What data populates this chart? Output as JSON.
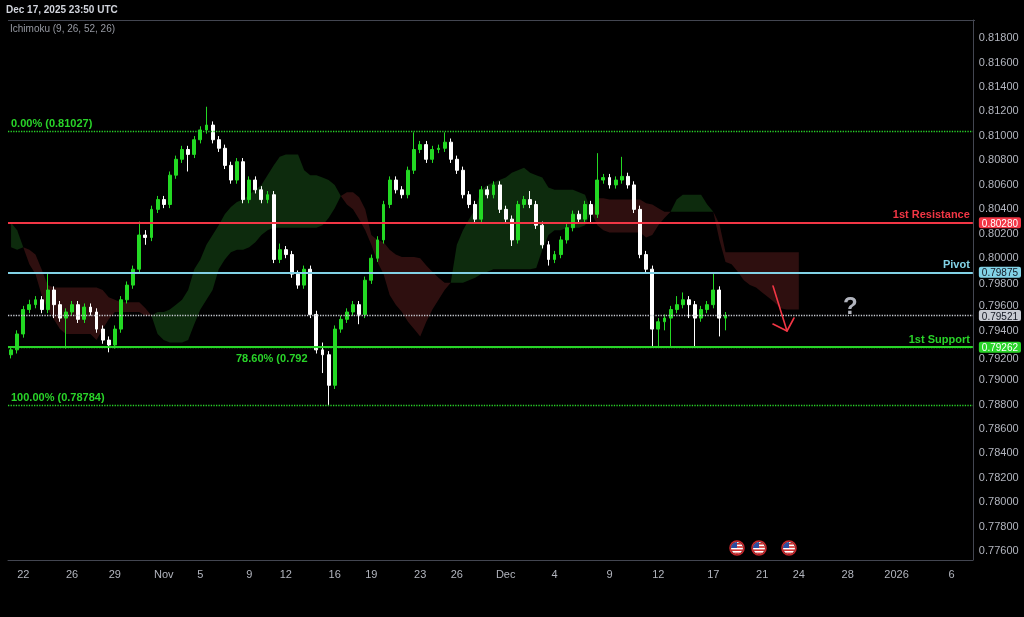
{
  "chart_data": {
    "type": "candlestick",
    "title": "Dec 17, 2025 23:50 UTC",
    "subtitle": "Ichimoku (9, 26, 52, 26)",
    "categories": [
      null,
      null,
      "22",
      null,
      null,
      null,
      null,
      null,
      null,
      null,
      "26",
      null,
      null,
      null,
      null,
      null,
      null,
      "29",
      null,
      null,
      null,
      null,
      null,
      null,
      null,
      "Nov",
      null,
      null,
      null,
      null,
      null,
      "5",
      null,
      null,
      null,
      null,
      null,
      null,
      null,
      "9",
      null,
      null,
      null,
      null,
      null,
      "12",
      null,
      null,
      null,
      null,
      null,
      null,
      null,
      "16",
      null,
      null,
      null,
      null,
      null,
      "19",
      null,
      null,
      null,
      null,
      null,
      null,
      null,
      "23",
      null,
      null,
      null,
      null,
      null,
      "26",
      null,
      null,
      null,
      null,
      null,
      null,
      null,
      "Dec",
      null,
      null,
      null,
      null,
      null,
      null,
      null,
      "4",
      null,
      null,
      null,
      null,
      null,
      null,
      null,
      null,
      "9",
      null,
      null,
      null,
      null,
      null,
      null,
      null,
      "12",
      null,
      null,
      null,
      null,
      null,
      null,
      null,
      null,
      "17",
      null,
      null,
      null,
      null,
      null,
      null,
      null,
      "21",
      null,
      null,
      null,
      null,
      null,
      "24",
      null,
      null,
      null,
      null,
      null,
      null,
      null,
      "28",
      null,
      null,
      null,
      null,
      null,
      null,
      null,
      "2026",
      null,
      null,
      null,
      null,
      null,
      null,
      null,
      null,
      "6",
      null,
      null,
      null
    ],
    "series": [
      {
        "ohlc": [
          [
            0.792,
            0.7927,
            0.7917,
            0.7924
          ],
          [
            0.7924,
            0.794,
            0.7921,
            0.7937
          ],
          [
            0.7937,
            0.796,
            0.7934,
            0.7957
          ],
          [
            0.7957,
            0.7965,
            0.7954,
            0.7961
          ],
          [
            0.7961,
            0.7968,
            0.7958,
            0.7965
          ],
          [
            0.7965,
            0.7968,
            0.7954,
            0.7957
          ],
          [
            0.7957,
            0.7987,
            0.7954,
            0.7973
          ],
          [
            0.7973,
            0.7976,
            0.795,
            0.7961
          ],
          [
            0.7961,
            0.7964,
            0.7947,
            0.795
          ],
          [
            0.795,
            0.7958,
            0.7925,
            0.7955
          ],
          [
            0.7955,
            0.7964,
            0.7952,
            0.7961
          ],
          [
            0.7961,
            0.7964,
            0.7946,
            0.7949
          ],
          [
            0.7949,
            0.7962,
            0.7946,
            0.7959
          ],
          [
            0.7959,
            0.7962,
            0.7952,
            0.7955
          ],
          [
            0.7955,
            0.7958,
            0.7938,
            0.7941
          ],
          [
            0.7941,
            0.7944,
            0.7929,
            0.7932
          ],
          [
            0.7932,
            0.7935,
            0.7922,
            0.7928
          ],
          [
            0.7928,
            0.7944,
            0.7925,
            0.7941
          ],
          [
            0.7941,
            0.7968,
            0.7938,
            0.7965
          ],
          [
            0.7965,
            0.798,
            0.7962,
            0.7977
          ],
          [
            0.7977,
            0.7993,
            0.7974,
            0.799
          ],
          [
            0.799,
            0.8029,
            0.7987,
            0.8018
          ],
          [
            0.8018,
            0.8022,
            0.801,
            0.8016
          ],
          [
            0.8016,
            0.8042,
            0.8013,
            0.8039
          ],
          [
            0.8039,
            0.805,
            0.8036,
            0.8047
          ],
          [
            0.8047,
            0.805,
            0.804,
            0.8043
          ],
          [
            0.8043,
            0.807,
            0.804,
            0.8067
          ],
          [
            0.8067,
            0.8083,
            0.8064,
            0.808
          ],
          [
            0.808,
            0.8091,
            0.8077,
            0.8088
          ],
          [
            0.8088,
            0.8091,
            0.807,
            0.8084
          ],
          [
            0.8084,
            0.8099,
            0.8081,
            0.8096
          ],
          [
            0.8096,
            0.8107,
            0.8093,
            0.8104
          ],
          [
            0.8104,
            0.8123,
            0.8101,
            0.8108
          ],
          [
            0.8108,
            0.8111,
            0.8093,
            0.8096
          ],
          [
            0.8096,
            0.8099,
            0.8086,
            0.8089
          ],
          [
            0.8089,
            0.8092,
            0.8072,
            0.8075
          ],
          [
            0.8075,
            0.8078,
            0.806,
            0.8063
          ],
          [
            0.8063,
            0.8081,
            0.806,
            0.8078
          ],
          [
            0.8078,
            0.8081,
            0.8044,
            0.8047
          ],
          [
            0.8047,
            0.8066,
            0.8044,
            0.8063
          ],
          [
            0.8063,
            0.8066,
            0.8052,
            0.8055
          ],
          [
            0.8055,
            0.8058,
            0.8044,
            0.8047
          ],
          [
            0.8047,
            0.8054,
            0.8044,
            0.8051
          ],
          [
            0.8051,
            0.8054,
            0.7995,
            0.7998
          ],
          [
            0.7998,
            0.8011,
            0.7995,
            0.8006
          ],
          [
            0.8006,
            0.8009,
            0.7999,
            0.8002
          ],
          [
            0.8002,
            0.8005,
            0.7983,
            0.7986
          ],
          [
            0.7986,
            0.7989,
            0.7974,
            0.7977
          ],
          [
            0.7977,
            0.7993,
            0.7974,
            0.799
          ],
          [
            0.799,
            0.7993,
            0.795,
            0.7953
          ],
          [
            0.7953,
            0.7956,
            0.7921,
            0.7924
          ],
          [
            0.7924,
            0.793,
            0.7905,
            0.792
          ],
          [
            0.792,
            0.7923,
            0.7878,
            0.7895
          ],
          [
            0.7895,
            0.7944,
            0.7892,
            0.7941
          ],
          [
            0.7941,
            0.7952,
            0.7938,
            0.7949
          ],
          [
            0.7949,
            0.7958,
            0.7946,
            0.7955
          ],
          [
            0.7955,
            0.7964,
            0.7952,
            0.7961
          ],
          [
            0.7961,
            0.7964,
            0.7945,
            0.7953
          ],
          [
            0.7953,
            0.7984,
            0.795,
            0.7981
          ],
          [
            0.7981,
            0.8002,
            0.7978,
            0.7999
          ],
          [
            0.7999,
            0.8017,
            0.7996,
            0.8014
          ],
          [
            0.8014,
            0.8046,
            0.8011,
            0.8043
          ],
          [
            0.8043,
            0.8066,
            0.804,
            0.8063
          ],
          [
            0.8063,
            0.8066,
            0.8052,
            0.8055
          ],
          [
            0.8055,
            0.8058,
            0.8048,
            0.8051
          ],
          [
            0.8051,
            0.8074,
            0.8048,
            0.8071
          ],
          [
            0.8071,
            0.8102,
            0.8068,
            0.8088
          ],
          [
            0.8088,
            0.8095,
            0.8085,
            0.8092
          ],
          [
            0.8092,
            0.8095,
            0.8077,
            0.808
          ],
          [
            0.808,
            0.8091,
            0.8077,
            0.8088
          ],
          [
            0.8088,
            0.8092,
            0.8085,
            0.8089
          ],
          [
            0.8089,
            0.8102,
            0.8086,
            0.8094
          ],
          [
            0.8094,
            0.8097,
            0.8077,
            0.808
          ],
          [
            0.808,
            0.8083,
            0.8068,
            0.8071
          ],
          [
            0.8071,
            0.8074,
            0.8048,
            0.8051
          ],
          [
            0.8051,
            0.8054,
            0.804,
            0.8043
          ],
          [
            0.8043,
            0.8046,
            0.8028,
            0.8031
          ],
          [
            0.8031,
            0.8058,
            0.8028,
            0.8055
          ],
          [
            0.8055,
            0.8058,
            0.8048,
            0.8051
          ],
          [
            0.8051,
            0.8062,
            0.8048,
            0.8059
          ],
          [
            0.8059,
            0.8062,
            0.8036,
            0.8039
          ],
          [
            0.8039,
            0.8042,
            0.8028,
            0.8031
          ],
          [
            0.8031,
            0.8034,
            0.8009,
            0.8014
          ],
          [
            0.8014,
            0.8046,
            0.8011,
            0.8043
          ],
          [
            0.8043,
            0.805,
            0.804,
            0.8047
          ],
          [
            0.8047,
            0.8054,
            0.804,
            0.8043
          ],
          [
            0.8043,
            0.8046,
            0.8023,
            0.8026
          ],
          [
            0.8026,
            0.8029,
            0.8007,
            0.801
          ],
          [
            0.801,
            0.8013,
            0.7993,
            0.7998
          ],
          [
            0.7998,
            0.8005,
            0.7995,
            0.8002
          ],
          [
            0.8002,
            0.8017,
            0.7999,
            0.8014
          ],
          [
            0.8014,
            0.8027,
            0.8011,
            0.8024
          ],
          [
            0.8024,
            0.8038,
            0.8021,
            0.8035
          ],
          [
            0.8035,
            0.8038,
            0.8028,
            0.8031
          ],
          [
            0.8031,
            0.8046,
            0.8028,
            0.8043
          ],
          [
            0.8043,
            0.8046,
            0.8028,
            0.8035
          ],
          [
            0.8035,
            0.8085,
            0.8032,
            0.8063
          ],
          [
            0.8063,
            0.8068,
            0.806,
            0.8065
          ],
          [
            0.8065,
            0.8068,
            0.8056,
            0.8059
          ],
          [
            0.8059,
            0.8066,
            0.8056,
            0.8063
          ],
          [
            0.8063,
            0.8082,
            0.806,
            0.8066
          ],
          [
            0.8066,
            0.8069,
            0.8056,
            0.8059
          ],
          [
            0.8059,
            0.8062,
            0.8036,
            0.8039
          ],
          [
            0.8039,
            0.8042,
            0.7999,
            0.8002
          ],
          [
            0.8002,
            0.8005,
            0.7987,
            0.799
          ],
          [
            0.799,
            0.7993,
            0.7926,
            0.7941
          ],
          [
            0.7941,
            0.795,
            0.7926,
            0.7947
          ],
          [
            0.7947,
            0.7953,
            0.794,
            0.795
          ],
          [
            0.795,
            0.796,
            0.7927,
            0.7957
          ],
          [
            0.7957,
            0.7968,
            0.7954,
            0.7961
          ],
          [
            0.7961,
            0.7971,
            0.7958,
            0.7965
          ],
          [
            0.7965,
            0.7968,
            0.795,
            0.7961
          ],
          [
            0.7961,
            0.7964,
            0.7927,
            0.795
          ],
          [
            0.795,
            0.796,
            0.7947,
            0.7957
          ],
          [
            0.7957,
            0.7964,
            0.7954,
            0.7961
          ],
          [
            0.7961,
            0.7987,
            0.7958,
            0.7973
          ],
          [
            0.7973,
            0.7976,
            0.7935,
            0.795
          ],
          [
            0.795,
            0.7955,
            0.794,
            0.7952
          ],
          null,
          null,
          null,
          null,
          null,
          null,
          null,
          null,
          null,
          null,
          null,
          null,
          null,
          null,
          null,
          null,
          null,
          null,
          null,
          null,
          null,
          null,
          null,
          null,
          null,
          null,
          null,
          null,
          null,
          null,
          null,
          null,
          null,
          null,
          null,
          null,
          null,
          null,
          null,
          null
        ],
        "colors": [
          "#23d923",
          "#23d923",
          "#23d923",
          "#23d923",
          "#23d923",
          "#ffffff",
          "#23d923",
          "#ffffff",
          "#ffffff",
          "#23d923",
          "#23d923",
          "#ffffff",
          "#23d923",
          "#ffffff",
          "#ffffff",
          "#ffffff",
          "#ffffff",
          "#23d923",
          "#23d923",
          "#23d923",
          "#23d923",
          "#23d923",
          "#ffffff",
          "#23d923",
          "#23d923",
          "#ffffff",
          "#23d923",
          "#23d923",
          "#23d923",
          "#ffffff",
          "#23d923",
          "#23d923",
          "#23d923",
          "#ffffff",
          "#ffffff",
          "#ffffff",
          "#ffffff",
          "#23d923",
          "#ffffff",
          "#23d923",
          "#ffffff",
          "#ffffff",
          "#23d923",
          "#ffffff",
          "#23d923",
          "#ffffff",
          "#ffffff",
          "#ffffff",
          "#23d923",
          "#ffffff",
          "#ffffff",
          "#ffffff",
          "#ffffff",
          "#23d923",
          "#23d923",
          "#23d923",
          "#23d923",
          "#ffffff",
          "#23d923",
          "#23d923",
          "#23d923",
          "#23d923",
          "#23d923",
          "#ffffff",
          "#ffffff",
          "#23d923",
          "#23d923",
          "#23d923",
          "#ffffff",
          "#23d923",
          "#23d923",
          "#23d923",
          "#ffffff",
          "#ffffff",
          "#ffffff",
          "#ffffff",
          "#ffffff",
          "#23d923",
          "#ffffff",
          "#23d923",
          "#ffffff",
          "#ffffff",
          "#ffffff",
          "#23d923",
          "#23d923",
          "#ffffff",
          "#ffffff",
          "#ffffff",
          "#ffffff",
          "#23d923",
          "#23d923",
          "#23d923",
          "#23d923",
          "#ffffff",
          "#23d923",
          "#ffffff",
          "#23d923",
          "#23d923",
          "#ffffff",
          "#23d923",
          "#23d923",
          "#ffffff",
          "#ffffff",
          "#ffffff",
          "#ffffff",
          "#ffffff",
          "#23d923",
          "#23d923",
          "#23d923",
          "#23d923",
          "#23d923",
          "#ffffff",
          "#ffffff",
          "#23d923",
          "#23d923",
          "#23d923",
          "#ffffff",
          "#23d923",
          null,
          null,
          null,
          null,
          null,
          null,
          null,
          null,
          null,
          null,
          null,
          null,
          null,
          null,
          null,
          null,
          null,
          null,
          null,
          null,
          null,
          null,
          null,
          null,
          null,
          null,
          null,
          null,
          null,
          null,
          null,
          null,
          null,
          null,
          null,
          null,
          null,
          null,
          null,
          null
        ]
      },
      {
        "type": "area",
        "color": "#0d2b0d",
        "values": [
          null,
          null,
          null,
          null,
          null,
          null,
          null,
          null,
          null,
          null,
          null,
          null,
          null,
          null,
          null,
          null,
          null,
          null,
          null,
          null,
          null,
          null,
          null,
          null,
          null,
          null,
          null,
          null,
          null,
          null,
          null,
          null,
          null,
          null,
          null,
          null,
          null,
          null,
          null,
          null,
          null,
          null,
          null,
          null,
          null,
          null,
          null,
          null,
          null,
          null,
          null,
          null,
          null,
          null,
          null,
          null,
          null,
          null,
          null,
          null,
          null,
          null,
          null,
          null,
          null,
          null,
          null,
          null,
          null,
          null,
          null,
          null,
          null,
          null,
          null,
          null,
          null,
          null,
          null,
          null,
          null,
          null,
          null,
          null,
          null,
          null,
          null,
          null,
          null,
          null,
          null,
          null,
          null,
          null,
          null,
          null,
          null,
          null,
          null,
          null,
          null,
          null,
          null,
          null,
          null,
          null,
          null,
          null,
          null,
          null,
          null,
          null,
          null,
          null,
          null,
          null,
          null,
          null,
          null,
          null,
          null,
          null,
          null,
          null,
          null,
          null,
          null,
          null,
          null,
          null,
          null,
          null,
          null,
          null,
          null,
          null,
          null,
          null,
          null,
          null,
          null,
          null,
          null,
          null,
          null,
          null,
          null,
          null,
          null,
          null,
          null,
          null,
          null,
          null,
          null,
          null,
          null,
          null
        ],
        "lower": [
          0.8008,
          0.8006,
          0.8008,
          null,
          null,
          null,
          null,
          null,
          null,
          null,
          null,
          null,
          null,
          null,
          null,
          null,
          null,
          null,
          null,
          null,
          null,
          null,
          null,
          0.7952,
          0.7937,
          0.7932,
          0.793,
          0.793,
          0.793,
          0.7932,
          0.7945,
          0.7957,
          0.7965,
          0.7973,
          0.799,
          0.7998,
          0.8004,
          0.8006,
          0.8006,
          0.8008,
          0.8012,
          0.8018,
          0.8022,
          0.8024,
          0.8024,
          0.8024,
          0.8024,
          0.8024,
          0.8024,
          0.8024,
          0.8024,
          0.8026,
          0.8032,
          0.804,
          0.805,
          null,
          null,
          null,
          null,
          null,
          null,
          null,
          null,
          null,
          null,
          null,
          null,
          null,
          null,
          null,
          null,
          null,
          0.7979,
          0.7979,
          0.7979,
          0.7981,
          0.7983,
          0.7986,
          0.7988,
          0.799,
          0.799,
          0.799,
          0.799,
          0.799,
          0.799,
          0.799,
          0.7991,
          0.8006,
          0.8018,
          0.8022,
          0.8022,
          0.8024,
          0.8024,
          0.8024,
          0.8026,
          0.8037,
          null,
          null,
          null,
          null,
          null,
          null,
          null,
          null,
          null,
          null,
          null,
          null,
          0.8037,
          0.8037,
          0.8037,
          0.8037,
          0.8037,
          0.8037,
          0.8037,
          0.8037,
          null,
          null,
          null,
          null,
          null,
          null,
          null,
          null,
          null,
          null,
          null,
          null,
          null,
          null,
          null,
          null,
          null,
          null,
          null,
          null,
          null,
          null,
          null,
          null,
          null,
          null,
          null,
          null,
          null,
          null,
          null,
          null,
          null,
          null,
          null,
          null,
          null,
          null,
          null,
          null,
          null,
          null
        ],
        "upper": [
          0.8028,
          0.8022,
          0.8008,
          null,
          null,
          null,
          null,
          null,
          null,
          null,
          null,
          null,
          null,
          null,
          null,
          null,
          null,
          null,
          null,
          null,
          null,
          null,
          null,
          0.7952,
          0.7955,
          0.7955,
          0.7957,
          0.7961,
          0.7965,
          0.7973,
          0.799,
          0.7998,
          0.801,
          0.8018,
          0.8026,
          0.8035,
          0.8041,
          0.8045,
          0.8047,
          0.8051,
          0.8055,
          0.8059,
          0.8067,
          0.8075,
          0.8082,
          0.8084,
          0.8084,
          0.8084,
          0.8071,
          0.8067,
          0.8067,
          0.8065,
          0.8063,
          0.8059,
          0.805,
          null,
          null,
          null,
          null,
          null,
          null,
          null,
          null,
          null,
          null,
          null,
          null,
          null,
          null,
          null,
          null,
          null,
          0.7979,
          0.801,
          0.8022,
          0.8031,
          0.8039,
          0.8055,
          0.8059,
          0.8061,
          0.8063,
          0.8065,
          0.8069,
          0.8071,
          0.8073,
          0.8069,
          0.8067,
          0.8065,
          0.8057,
          0.8055,
          0.8055,
          0.8055,
          0.8055,
          0.8053,
          0.8051,
          0.8037,
          null,
          null,
          null,
          null,
          null,
          null,
          null,
          null,
          null,
          null,
          null,
          null,
          0.8037,
          0.8047,
          0.8051,
          0.8051,
          0.8051,
          0.8051,
          0.8043,
          0.8037,
          null,
          null,
          null,
          null,
          null,
          null,
          null,
          null,
          null,
          null,
          null,
          null,
          null,
          null,
          null,
          null,
          null,
          null,
          null,
          null,
          null,
          null,
          null,
          null,
          null,
          null,
          null,
          null,
          null,
          null,
          null,
          null,
          null,
          null,
          null,
          null,
          null,
          null,
          null,
          null,
          null,
          null
        ]
      },
      {
        "type": "area",
        "color": "#2e0f0f",
        "values": [
          null,
          null,
          null,
          null,
          null,
          null,
          null,
          null,
          null,
          null,
          null,
          null,
          null,
          null,
          null,
          null,
          null,
          null,
          null,
          null,
          null,
          null,
          null,
          null,
          null,
          null,
          null,
          null,
          null,
          null,
          null,
          null,
          null,
          null,
          null,
          null,
          null,
          null,
          null,
          null,
          null,
          null,
          null,
          null,
          null,
          null,
          null,
          null,
          null,
          null,
          null,
          null,
          null,
          null,
          null,
          null,
          null,
          null,
          null,
          null,
          null,
          null,
          null,
          null,
          null,
          null,
          null,
          null,
          null,
          null,
          null,
          null,
          null,
          null,
          null,
          null,
          null,
          null,
          null,
          null,
          null,
          null,
          null,
          null,
          null,
          null,
          null,
          null,
          null,
          null,
          null,
          null,
          null,
          null,
          null,
          null,
          null,
          null,
          null,
          null,
          null,
          null,
          null,
          null,
          null,
          null,
          null,
          null,
          null,
          null,
          null,
          null,
          null,
          null,
          null,
          null,
          null,
          null,
          null,
          null,
          null,
          null,
          null,
          null,
          null,
          null,
          null,
          null,
          null,
          null,
          null,
          null,
          null,
          null,
          null,
          null,
          null,
          null,
          null,
          null,
          null,
          null,
          null,
          null,
          null,
          null,
          null,
          null,
          null,
          null,
          null,
          null,
          null,
          null,
          null,
          null,
          null,
          null
        ],
        "lower": [
          null,
          null,
          0.8008,
          0.7994,
          0.7986,
          0.7969,
          0.7957,
          0.7949,
          0.7941,
          0.7937,
          0.7937,
          0.7937,
          0.7937,
          0.7937,
          0.7932,
          0.7941,
          0.7949,
          0.7955,
          0.7955,
          0.7955,
          0.7955,
          0.7955,
          0.7952,
          0.7952,
          null,
          null,
          null,
          null,
          null,
          null,
          null,
          null,
          null,
          null,
          null,
          null,
          null,
          null,
          null,
          null,
          null,
          null,
          null,
          null,
          null,
          null,
          null,
          null,
          null,
          null,
          null,
          null,
          null,
          null,
          0.805,
          0.8043,
          0.8039,
          0.8031,
          0.8022,
          0.801,
          0.7996,
          0.7986,
          0.7969,
          0.7961,
          0.7955,
          0.7947,
          0.7941,
          0.7935,
          0.7947,
          0.7957,
          0.7965,
          0.7973,
          0.7979,
          null,
          null,
          null,
          null,
          null,
          null,
          null,
          null,
          null,
          null,
          null,
          null,
          null,
          null,
          null,
          null,
          null,
          null,
          null,
          null,
          null,
          null,
          0.8037,
          0.8026,
          0.8022,
          0.802,
          0.802,
          0.802,
          0.802,
          0.802,
          0.802,
          0.8016,
          0.8018,
          0.8026,
          0.8032,
          0.8037,
          null,
          null,
          null,
          null,
          null,
          null,
          0.8037,
          0.8014,
          0.7996,
          0.7994,
          0.7988,
          0.7981,
          0.7977,
          0.7975,
          0.7971,
          0.7967,
          0.7963,
          0.7958,
          0.7957,
          0.7957,
          0.7957,
          null,
          null,
          null,
          null,
          null,
          null,
          null,
          null,
          null,
          null,
          null,
          null,
          null,
          null,
          null,
          null,
          null,
          null,
          null,
          null,
          null,
          null,
          null,
          null,
          null,
          null,
          null,
          null
        ],
        "upper": [
          null,
          null,
          0.8008,
          0.8006,
          0.8002,
          0.799,
          0.7977,
          0.7975,
          0.7975,
          0.7975,
          0.7975,
          0.7975,
          0.7975,
          0.7975,
          0.7975,
          0.7973,
          0.7967,
          0.7965,
          0.7963,
          0.7963,
          0.7963,
          0.7963,
          0.7958,
          0.7952,
          null,
          null,
          null,
          null,
          null,
          null,
          null,
          null,
          null,
          null,
          null,
          null,
          null,
          null,
          null,
          null,
          null,
          null,
          null,
          null,
          null,
          null,
          null,
          null,
          null,
          null,
          null,
          null,
          null,
          null,
          0.805,
          0.8053,
          0.8053,
          0.8049,
          0.8039,
          0.8018,
          0.8014,
          0.8012,
          0.8006,
          0.8002,
          0.8,
          0.8,
          0.8,
          0.7999,
          0.7993,
          0.7988,
          0.7983,
          0.7979,
          0.7979,
          null,
          null,
          null,
          null,
          null,
          null,
          null,
          null,
          null,
          null,
          null,
          null,
          null,
          null,
          null,
          null,
          null,
          null,
          null,
          null,
          null,
          null,
          0.8037,
          0.8048,
          0.8048,
          0.8047,
          0.8047,
          0.8047,
          0.8047,
          0.8047,
          0.8047,
          0.8044,
          0.8043,
          0.804,
          0.8037,
          0.8037,
          null,
          null,
          null,
          null,
          null,
          null,
          0.8037,
          0.8027,
          0.8004,
          0.8004,
          0.8004,
          0.8004,
          0.8004,
          0.8004,
          0.8004,
          0.8004,
          0.8004,
          0.8004,
          0.8004,
          0.8004,
          0.8004,
          null,
          null,
          null,
          null,
          null,
          null,
          null,
          null,
          null,
          null,
          null,
          null,
          null,
          null,
          null,
          null,
          null,
          null,
          null,
          null,
          null,
          null,
          null,
          null,
          null,
          null,
          null,
          null
        ]
      }
    ],
    "ylim": [
      0.7752,
      0.8194
    ],
    "yticks": [
      {
        "value": 0.776,
        "label": "0.77600"
      },
      {
        "value": 0.778,
        "label": "0.77800"
      },
      {
        "value": 0.78,
        "label": "0.78000"
      },
      {
        "value": 0.782,
        "label": "0.78200"
      },
      {
        "value": 0.784,
        "label": "0.78400"
      },
      {
        "value": 0.786,
        "label": "0.78600"
      },
      {
        "value": 0.788,
        "label": "0.78800"
      },
      {
        "value": 0.79,
        "label": "0.79000"
      },
      {
        "value": 0.792,
        "label": "0.79200"
      },
      {
        "value": 0.79262,
        "label": "0.79262"
      },
      {
        "value": 0.794,
        "label": "0.79400"
      },
      {
        "value": 0.79521,
        "label": "0.79521"
      },
      {
        "value": 0.796,
        "label": "0.79600"
      },
      {
        "value": 0.798,
        "label": "0.79800"
      },
      {
        "value": 0.79875,
        "label": "0.79875"
      },
      {
        "value": 0.8,
        "label": "0.80000"
      },
      {
        "value": 0.802,
        "label": "0.80200"
      },
      {
        "value": 0.8028,
        "label": "0.80280"
      },
      {
        "value": 0.804,
        "label": "0.80400"
      },
      {
        "value": 0.806,
        "label": "0.80600"
      },
      {
        "value": 0.808,
        "label": "0.80800"
      },
      {
        "value": 0.81,
        "label": "0.81000"
      },
      {
        "value": 0.812,
        "label": "0.81200"
      },
      {
        "value": 0.814,
        "label": "0.81400"
      },
      {
        "value": 0.816,
        "label": "0.81600"
      },
      {
        "value": 0.818,
        "label": "0.81800"
      }
    ],
    "ref_lines": [
      {
        "axis": "y",
        "value": 0.8028,
        "label": "1st Resistance",
        "color": "#f23645",
        "line_style": "solid"
      },
      {
        "axis": "y",
        "value": 0.79875,
        "label": "Pivot",
        "color": "#82d2e6",
        "line_style": "solid"
      },
      {
        "axis": "y",
        "value": 0.79262,
        "label": "1st Support",
        "color": "#29d429",
        "line_style": "solid"
      },
      {
        "axis": "y",
        "value": 0.79521,
        "color": "#c8cbd3",
        "line_style": "dotted"
      },
      {
        "axis": "y",
        "value": 0.81027,
        "label": "0.00% (0.81027)",
        "color": "#29d429",
        "line_style": "dotted"
      },
      {
        "axis": "y",
        "value": 0.7926,
        "color": "#29d429",
        "line_style": "dotted"
      },
      {
        "axis": "y",
        "value": 0.78784,
        "label": "100.00% (0.78784)",
        "color": "#29d429",
        "line_style": "dotted"
      }
    ],
    "annotations": [
      "?",
      "78.60% (0.792"
    ]
  }
}
